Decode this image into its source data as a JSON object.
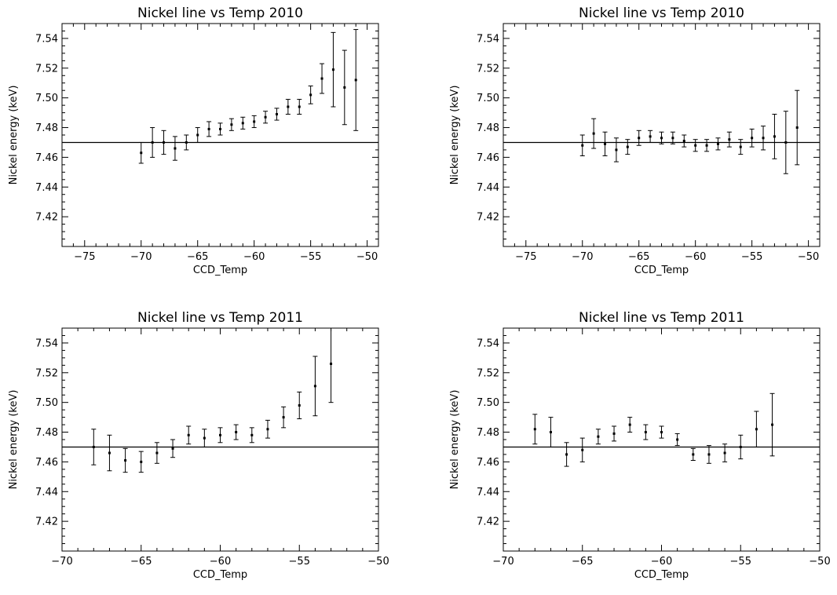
{
  "chart_data": [
    {
      "type": "scatter",
      "title": "Nickel line vs Temp 2010",
      "xlabel": "CCD_Temp",
      "ylabel": "Nickel energy (keV)",
      "xlim": [
        -77,
        -49
      ],
      "ylim": [
        7.4,
        7.55
      ],
      "xticks": [
        -75,
        -70,
        -65,
        -60,
        -55,
        -50
      ],
      "yticks": [
        7.42,
        7.44,
        7.46,
        7.48,
        7.5,
        7.52,
        7.54
      ],
      "reference_line": 7.47,
      "series": [
        {
          "x": [
            -70,
            -69,
            -68,
            -67,
            -66,
            -65,
            -64,
            -63,
            -62,
            -61,
            -60,
            -59,
            -58,
            -57,
            -56,
            -55,
            -54,
            -53,
            -52,
            -51
          ],
          "y": [
            7.463,
            7.47,
            7.47,
            7.466,
            7.47,
            7.475,
            7.479,
            7.479,
            7.482,
            7.483,
            7.484,
            7.487,
            7.489,
            7.494,
            7.494,
            7.502,
            7.513,
            7.519,
            7.507,
            7.512
          ],
          "err": [
            0.007,
            0.01,
            0.008,
            0.008,
            0.005,
            0.005,
            0.005,
            0.004,
            0.004,
            0.004,
            0.004,
            0.004,
            0.004,
            0.005,
            0.005,
            0.006,
            0.01,
            0.025,
            0.025,
            0.034
          ]
        }
      ]
    },
    {
      "type": "scatter",
      "title": "Nickel line vs Temp 2010",
      "xlabel": "CCD_Temp",
      "ylabel": "Nickel energy (keV)",
      "xlim": [
        -77,
        -49
      ],
      "ylim": [
        7.4,
        7.55
      ],
      "xticks": [
        -75,
        -70,
        -65,
        -60,
        -55,
        -50
      ],
      "yticks": [
        7.42,
        7.44,
        7.46,
        7.48,
        7.5,
        7.52,
        7.54
      ],
      "reference_line": 7.47,
      "series": [
        {
          "x": [
            -70,
            -69,
            -68,
            -67,
            -66,
            -65,
            -64,
            -63,
            -62,
            -61,
            -60,
            -59,
            -58,
            -57,
            -56,
            -55,
            -54,
            -53,
            -52,
            -51
          ],
          "y": [
            7.468,
            7.476,
            7.469,
            7.465,
            7.467,
            7.473,
            7.474,
            7.473,
            7.473,
            7.471,
            7.468,
            7.468,
            7.469,
            7.472,
            7.467,
            7.473,
            7.473,
            7.474,
            7.47,
            7.48
          ],
          "err": [
            0.007,
            0.01,
            0.008,
            0.008,
            0.005,
            0.005,
            0.004,
            0.004,
            0.004,
            0.004,
            0.004,
            0.004,
            0.004,
            0.005,
            0.005,
            0.006,
            0.008,
            0.015,
            0.021,
            0.025
          ]
        }
      ]
    },
    {
      "type": "scatter",
      "title": "Nickel line vs Temp 2011",
      "xlabel": "CCD_Temp",
      "ylabel": "Nickel energy (keV)",
      "xlim": [
        -70,
        -50
      ],
      "ylim": [
        7.4,
        7.55
      ],
      "xticks": [
        -70,
        -65,
        -60,
        -55,
        -50
      ],
      "yticks": [
        7.42,
        7.44,
        7.46,
        7.48,
        7.5,
        7.52,
        7.54
      ],
      "reference_line": 7.47,
      "series": [
        {
          "x": [
            -68,
            -67,
            -66,
            -65,
            -64,
            -63,
            -62,
            -61,
            -60,
            -59,
            -58,
            -57,
            -56,
            -55,
            -54,
            -53
          ],
          "y": [
            7.47,
            7.466,
            7.461,
            7.46,
            7.466,
            7.469,
            7.478,
            7.476,
            7.478,
            7.48,
            7.478,
            7.482,
            7.49,
            7.498,
            7.511,
            7.526
          ],
          "err": [
            0.012,
            0.012,
            0.008,
            0.007,
            0.007,
            0.006,
            0.006,
            0.006,
            0.005,
            0.005,
            0.005,
            0.006,
            0.007,
            0.009,
            0.02,
            0.026
          ]
        }
      ]
    },
    {
      "type": "scatter",
      "title": "Nickel line vs Temp 2011",
      "xlabel": "CCD_Temp",
      "ylabel": "Nickel energy (keV)",
      "xlim": [
        -70,
        -50
      ],
      "ylim": [
        7.4,
        7.55
      ],
      "xticks": [
        -70,
        -65,
        -60,
        -55,
        -50
      ],
      "yticks": [
        7.42,
        7.44,
        7.46,
        7.48,
        7.5,
        7.52,
        7.54
      ],
      "reference_line": 7.47,
      "series": [
        {
          "x": [
            -68,
            -67,
            -66,
            -65,
            -64,
            -63,
            -62,
            -61,
            -60,
            -59,
            -58,
            -57,
            -56,
            -55,
            -54,
            -53
          ],
          "y": [
            7.482,
            7.48,
            7.465,
            7.468,
            7.477,
            7.479,
            7.485,
            7.48,
            7.48,
            7.475,
            7.465,
            7.465,
            7.466,
            7.47,
            7.482,
            7.485
          ],
          "err": [
            0.01,
            0.01,
            0.008,
            0.008,
            0.005,
            0.005,
            0.005,
            0.005,
            0.004,
            0.004,
            0.004,
            0.006,
            0.006,
            0.008,
            0.012,
            0.021
          ]
        }
      ]
    }
  ]
}
